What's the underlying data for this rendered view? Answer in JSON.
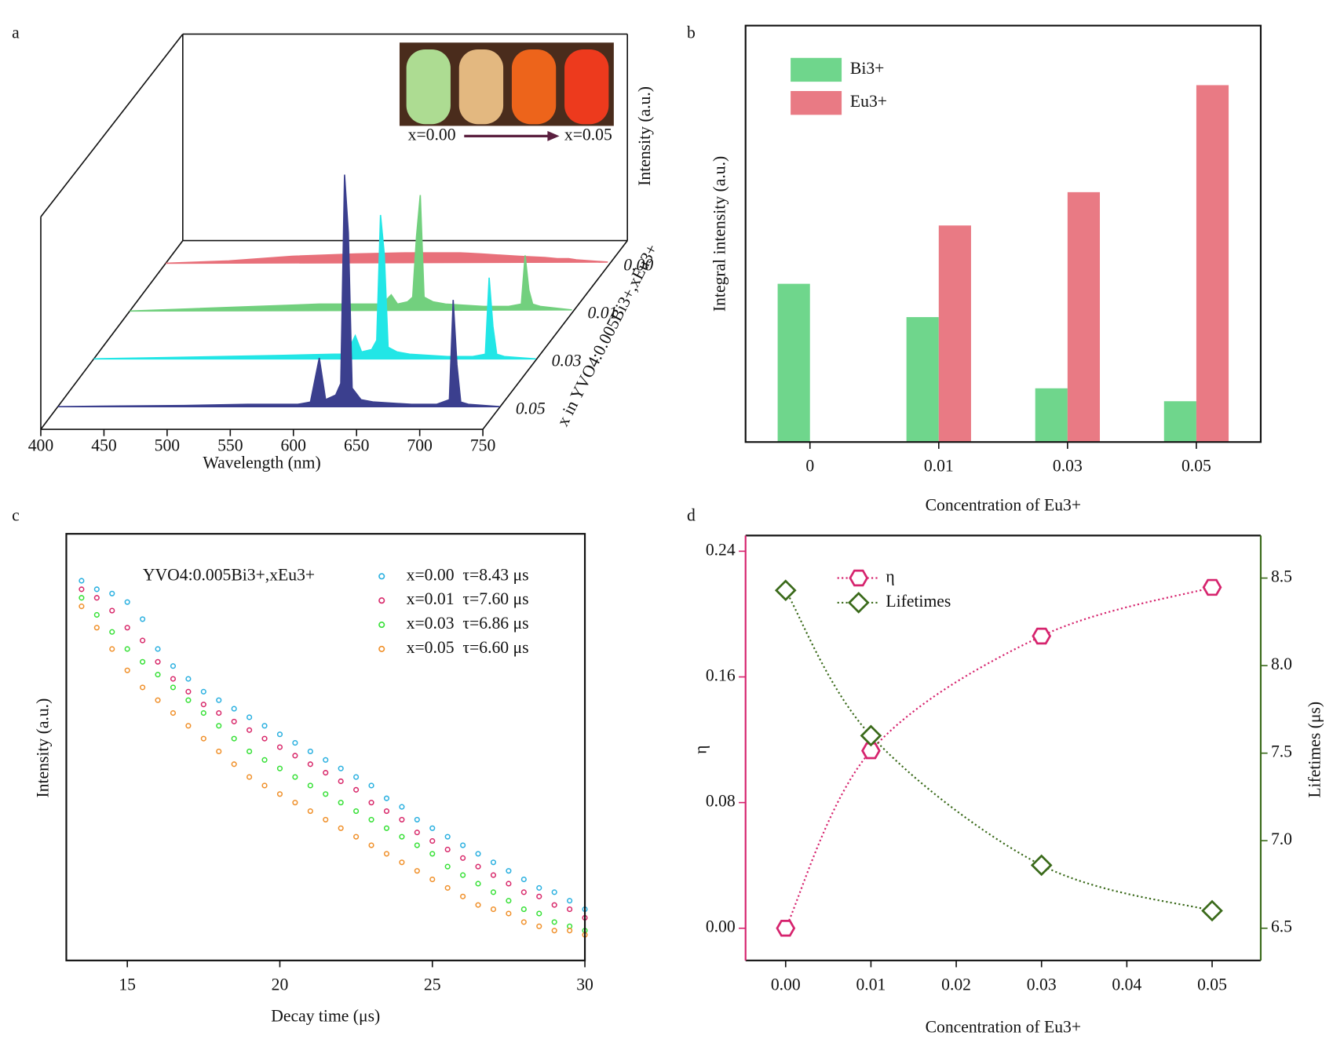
{
  "chart_data": [
    {
      "type": "waterfall",
      "panel_label": "a",
      "xlabel": "Wavelength (nm)",
      "ylabel": "Intensity (a.u.)",
      "depth_label": "x in YVO4:0.005Bi3+,xEu3+",
      "inset_labels": [
        "x=0.00",
        "x=0.05"
      ],
      "x": [
        400,
        450,
        500,
        550,
        590,
        600,
        607,
        612,
        620,
        624,
        627,
        630,
        633,
        640,
        650,
        680,
        700,
        710,
        713,
        716,
        719,
        725,
        750
      ],
      "xlim": [
        400,
        750
      ],
      "xticks": [
        400,
        450,
        500,
        550,
        600,
        650,
        700,
        750
      ],
      "ylim": [
        0,
        100
      ],
      "series": [
        {
          "name": "0.00",
          "color": "#e8707a",
          "values": [
            0,
            1,
            3,
            4,
            4.5,
            4.5,
            4.5,
            4.5,
            4.5,
            4.5,
            4.5,
            4.5,
            4.5,
            4.3,
            4,
            3,
            2.5,
            2,
            2,
            2,
            2,
            1.5,
            0.5
          ]
        },
        {
          "name": "0.01",
          "color": "#72d07e",
          "values": [
            0,
            1,
            2,
            3,
            3,
            3,
            7,
            3,
            4,
            6,
            32,
            50,
            6,
            4,
            3,
            2,
            2,
            3,
            24,
            9,
            3,
            2,
            0.5
          ]
        },
        {
          "name": "0.03",
          "color": "#22e6e6",
          "values": [
            0,
            0.5,
            1,
            1.5,
            2,
            2,
            10,
            3,
            4,
            8,
            62,
            45,
            5,
            3,
            2,
            1,
            1,
            2,
            35,
            14,
            2,
            1,
            0
          ]
        },
        {
          "name": "0.05",
          "color": "#3b3f8e",
          "values": [
            0,
            0.3,
            0.5,
            1,
            1,
            2,
            21,
            3,
            5,
            10,
            100,
            75,
            8,
            3,
            2,
            1,
            1,
            3,
            46,
            18,
            2,
            1,
            0
          ]
        }
      ]
    },
    {
      "type": "bar",
      "panel_label": "b",
      "xlabel": "Concentration of Eu3+",
      "ylabel": "Integral intensity (a.u.)",
      "categories": [
        "0",
        "0.01",
        "0.03",
        "0.05"
      ],
      "ylim": [
        0,
        100
      ],
      "series": [
        {
          "name": "Bi3+",
          "color": "#6fd68c",
          "values": [
            38,
            30,
            12.9,
            9.8
          ]
        },
        {
          "name": "Eu3+",
          "color": "#e97a84",
          "values": [
            0,
            52,
            60,
            85.7
          ]
        }
      ]
    },
    {
      "type": "scatter",
      "panel_label": "c",
      "xlabel": "Decay time (μs)",
      "ylabel": "Intensity (a.u.)",
      "annotation": "YVO4:0.005Bi3+,xEu3+",
      "x": [
        13.5,
        14,
        14.5,
        15,
        15.5,
        16,
        16.5,
        17,
        17.5,
        18,
        18.5,
        19,
        19.5,
        20,
        20.5,
        21,
        21.5,
        22,
        22.5,
        23,
        23.5,
        24,
        24.5,
        25,
        25.5,
        26,
        26.5,
        27,
        27.5,
        28,
        28.5,
        29,
        29.5,
        30
      ],
      "xlim": [
        13,
        30
      ],
      "xticks": [
        15,
        20,
        25,
        30
      ],
      "ylim": [
        0,
        100
      ],
      "series": [
        {
          "name": "x=0.00  τ=8.43 μs",
          "color": "#2ab0e0",
          "values": [
            89,
            87,
            86,
            84,
            80,
            73,
            69,
            66,
            63,
            61,
            59,
            57,
            55,
            53,
            51,
            49,
            47,
            45,
            43,
            41,
            38,
            36,
            33,
            31,
            29,
            27,
            25,
            23,
            21,
            19,
            17,
            16,
            14,
            12
          ]
        },
        {
          "name": "x=0.01  τ=7.60 μs",
          "color": "#d8286a",
          "values": [
            87,
            85,
            82,
            78,
            75,
            70,
            66,
            63,
            60,
            58,
            56,
            54,
            52,
            50,
            48,
            46,
            44,
            42,
            40,
            37,
            35,
            33,
            30,
            28,
            26,
            24,
            22,
            20,
            18,
            16,
            15,
            13,
            12,
            10
          ]
        },
        {
          "name": "x=0.03  τ=6.86 μs",
          "color": "#36e036",
          "values": [
            85,
            81,
            77,
            73,
            70,
            67,
            64,
            61,
            58,
            55,
            52,
            49,
            47,
            45,
            43,
            41,
            39,
            37,
            35,
            33,
            31,
            29,
            27,
            25,
            22,
            20,
            18,
            16,
            14,
            12,
            11,
            9,
            8,
            7
          ]
        },
        {
          "name": "x=0.05  τ=6.60 μs",
          "color": "#f0902a",
          "values": [
            83,
            78,
            73,
            68,
            64,
            61,
            58,
            55,
            52,
            49,
            46,
            43,
            41,
            39,
            37,
            35,
            33,
            31,
            29,
            27,
            25,
            23,
            21,
            19,
            17,
            15,
            13,
            12,
            11,
            9,
            8,
            7,
            7,
            6
          ]
        }
      ]
    },
    {
      "type": "line",
      "panel_label": "d",
      "xlabel": "Concentration of Eu3+",
      "ylabel": "η",
      "y2label": "Lifetimes (μs)",
      "x": [
        0,
        0.01,
        0.03,
        0.05
      ],
      "xlim": [
        -0.0047,
        0.0557
      ],
      "xticks": [
        {
          "value": 0,
          "label": "0.00"
        },
        0.01,
        0.02,
        0.03,
        0.04,
        0.05
      ],
      "ylim": [
        -0.0205,
        0.25
      ],
      "yticks": [
        {
          "value": 0,
          "label": "0.00"
        },
        0.08,
        0.16,
        0.24
      ],
      "y2lim": [
        6.316,
        8.743
      ],
      "y2ticks": [
        6.5,
        {
          "value": 7,
          "label": "7.0"
        },
        7.5,
        {
          "value": 8,
          "label": "8.0"
        },
        8.5
      ],
      "series": [
        {
          "name": "η",
          "color": "#d6246e",
          "marker": "hexagon",
          "values": [
            0,
            0.113,
            0.186,
            0.217
          ]
        },
        {
          "name": "Lifetimes",
          "color": "#3a6a1a",
          "marker": "diamond",
          "axis": "y2",
          "values": [
            8.43,
            7.6,
            6.86,
            6.6
          ]
        }
      ]
    }
  ]
}
